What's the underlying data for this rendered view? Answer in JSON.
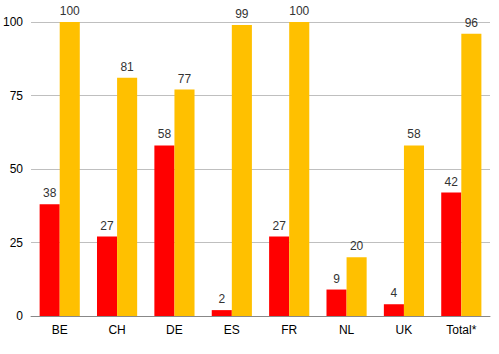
{
  "chart_data": {
    "type": "bar",
    "categories": [
      "BE",
      "CH",
      "DE",
      "ES",
      "FR",
      "NL",
      "UK",
      "Total*"
    ],
    "series": [
      {
        "color": "#ff0000",
        "values": [
          38,
          27,
          58,
          2,
          27,
          9,
          4,
          42
        ]
      },
      {
        "color": "#ffc000",
        "values": [
          100,
          81,
          77,
          99,
          100,
          20,
          58,
          96
        ]
      }
    ],
    "ylim": [
      0,
      100
    ],
    "yticks": [
      0,
      25,
      50,
      75,
      100
    ],
    "grid": true,
    "data_labels": true
  }
}
